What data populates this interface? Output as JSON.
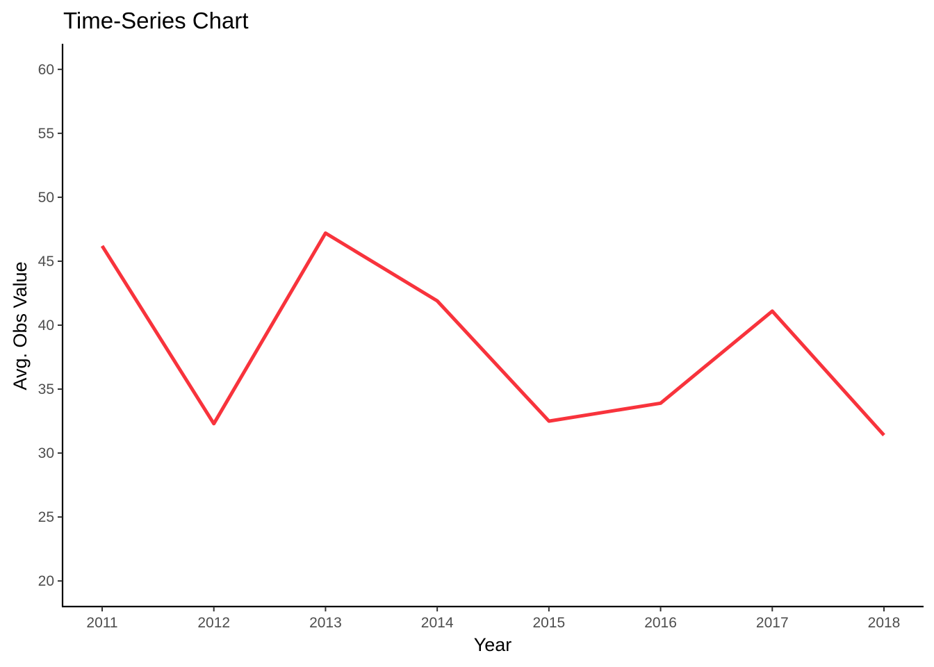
{
  "chart_data": {
    "type": "line",
    "title": "Time-Series Chart",
    "xlabel": "Year",
    "ylabel": "Avg. Obs Value",
    "x": [
      "2011",
      "2012",
      "2013",
      "2014",
      "2015",
      "2016",
      "2017",
      "2018"
    ],
    "y_ticks": [
      "20",
      "25",
      "30",
      "35",
      "40",
      "45",
      "50",
      "55",
      "60"
    ],
    "ylim": [
      18,
      62
    ],
    "grid": false,
    "legend": "none",
    "series": [
      {
        "values": [
          46.2,
          32.3,
          47.2,
          41.9,
          32.5,
          33.9,
          41.1,
          31.4
        ],
        "color": "#f8333c"
      }
    ]
  }
}
